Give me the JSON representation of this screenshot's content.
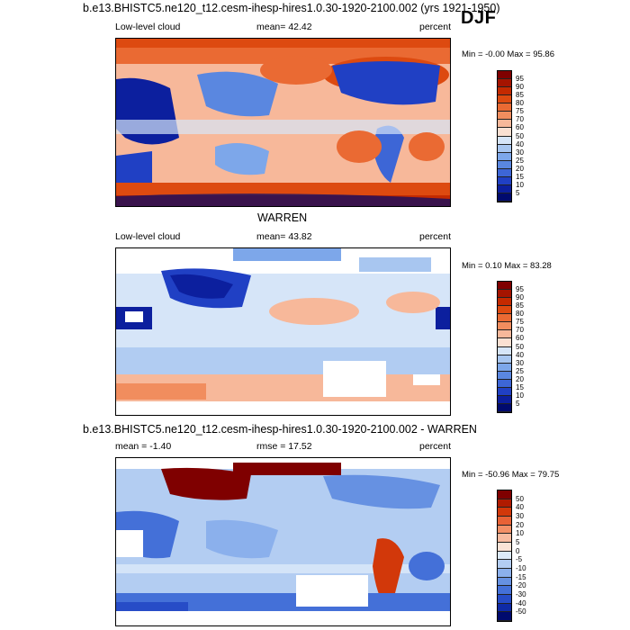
{
  "page": {
    "title_top": "b.e13.BHISTC5.ne120_t12.cesm-ihesp-hires1.0.30-1920-2100.002 (yrs 1921-1950)",
    "season": "DJF",
    "title_mid": "WARREN",
    "title_bottom": "b.e13.BHISTC5.ne120_t12.cesm-ihesp-hires1.0.30-1920-2100.002 - WARREN"
  },
  "panels": [
    {
      "variable": "Low-level cloud",
      "stat": "mean=  42.42",
      "units": "percent",
      "range": "Min = -0.00 Max =  95.86",
      "colorbar": [
        "95",
        "90",
        "85",
        "80",
        "75",
        "70",
        "60",
        "50",
        "40",
        "30",
        "25",
        "20",
        "15",
        "10",
        "5"
      ]
    },
    {
      "variable": "Low-level cloud",
      "stat": "mean=  43.82",
      "units": "percent",
      "range": "Min =  0.10 Max =  83.28",
      "colorbar": [
        "95",
        "90",
        "85",
        "80",
        "75",
        "70",
        "60",
        "50",
        "40",
        "30",
        "25",
        "20",
        "15",
        "10",
        "5"
      ]
    },
    {
      "variable": "mean =  -1.40",
      "stat": "rmse =  17.52",
      "units": "percent",
      "range": "Min = -50.96 Max =  79.75",
      "colorbar": [
        "50",
        "40",
        "30",
        "20",
        "10",
        "5",
        "0",
        "-5",
        "-10",
        "-15",
        "-20",
        "-30",
        "-40",
        "-50"
      ]
    }
  ],
  "colors": {
    "abs_scale": [
      "#7f0000",
      "#a51400",
      "#c42a00",
      "#dd4a10",
      "#ea6a33",
      "#f18d5e",
      "#f7b89a",
      "#fae0d2",
      "#d6e5f8",
      "#a8c6f0",
      "#7da7ea",
      "#5a87e0",
      "#3d66d6",
      "#2040c4",
      "#0c1f9e",
      "#000a6e"
    ],
    "diff_scale": [
      "#7f0000",
      "#b01b00",
      "#d2380a",
      "#e86236",
      "#f39067",
      "#f8bba0",
      "#fbe3d6",
      "#dceaf9",
      "#b3cdf2",
      "#8bb0ec",
      "#6691e2",
      "#4470d8",
      "#274cc7",
      "#0f2aa6",
      "#000a6e"
    ]
  }
}
